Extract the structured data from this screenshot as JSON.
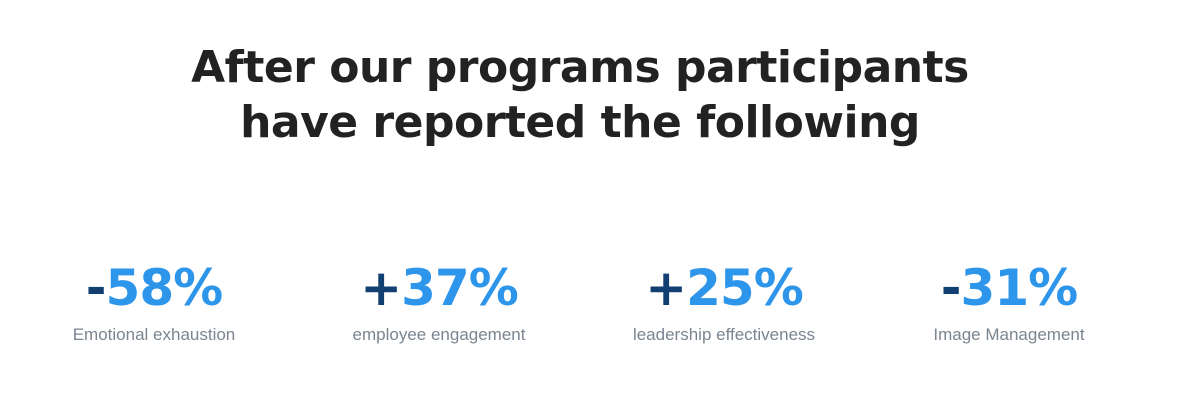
{
  "headline": {
    "line1": "After our programs participants",
    "line2": "have reported the following"
  },
  "stats": [
    {
      "sign": "-",
      "number": "58%",
      "label": "Emotional exhaustion"
    },
    {
      "sign": "+",
      "number": "37%",
      "label": "employee engagement"
    },
    {
      "sign": "+",
      "number": "25%",
      "label": "leadership effectiveness"
    },
    {
      "sign": "-",
      "number": "31%",
      "label": "Image Management"
    }
  ],
  "colors": {
    "sign": "#123f72",
    "number": "#2d95ea",
    "heading": "#222222",
    "label": "#7a8591"
  }
}
